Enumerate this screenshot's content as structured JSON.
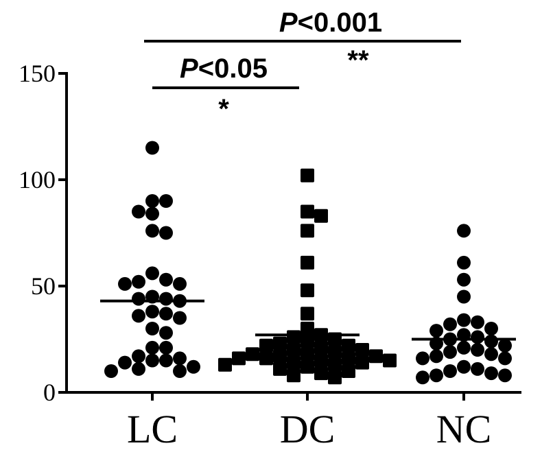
{
  "chart_data": {
    "type": "scatter",
    "title": "",
    "xlabel": "",
    "ylabel": "",
    "ylim": [
      0,
      150
    ],
    "yticks": [
      0,
      50,
      100,
      150
    ],
    "categories": [
      "LC",
      "DC",
      "NC"
    ],
    "series": [
      {
        "category": "LC",
        "marker": "circle",
        "mean": 43,
        "values": [
          115,
          90,
          90,
          84,
          85,
          76,
          75,
          56,
          53,
          52,
          51,
          51,
          45,
          44,
          44,
          43,
          38,
          37,
          36,
          35,
          30,
          28,
          21,
          21,
          17,
          16,
          15,
          15,
          14,
          12,
          11,
          10,
          10
        ]
      },
      {
        "category": "DC",
        "marker": "square",
        "mean": 27,
        "values": [
          102,
          85,
          83,
          76,
          61,
          48,
          37,
          30,
          27,
          26,
          25,
          24,
          23,
          22,
          22,
          21,
          20,
          20,
          19,
          18,
          18,
          17,
          17,
          16,
          16,
          16,
          15,
          15,
          14,
          14,
          13,
          13,
          12,
          11,
          10,
          9,
          8,
          7
        ]
      },
      {
        "category": "NC",
        "marker": "circle",
        "mean": 25,
        "values": [
          76,
          61,
          53,
          45,
          34,
          33,
          32,
          30,
          29,
          27,
          26,
          25,
          24,
          23,
          22,
          21,
          20,
          19,
          18,
          17,
          16,
          16,
          12,
          11,
          10,
          9,
          8,
          8,
          7
        ]
      }
    ],
    "significance": [
      {
        "pair": [
          "LC",
          "DC"
        ],
        "label_p": "P",
        "label_rest": "<0.05",
        "stars": "*"
      },
      {
        "pair": [
          "LC",
          "NC"
        ],
        "label_p": "P",
        "label_rest": "<0.001",
        "stars": "**"
      }
    ]
  }
}
